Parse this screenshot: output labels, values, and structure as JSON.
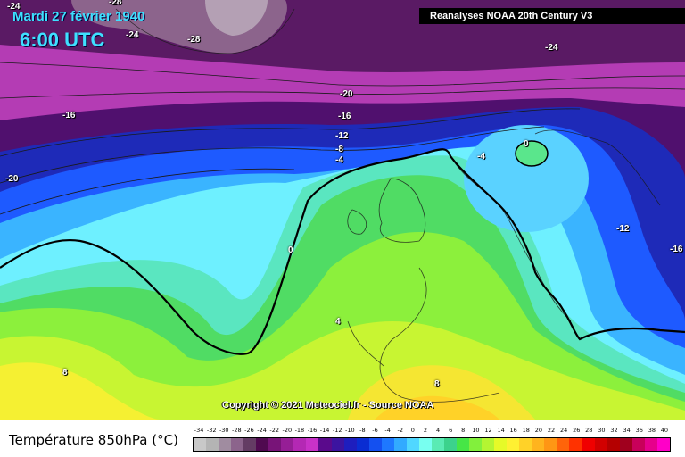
{
  "header": {
    "date": "Mardi 27 février 1940",
    "time": "6:00 UTC",
    "source": "Reanalyses NOAA 20th Century V3",
    "copyright": "Copyright © 2021 Meteociel.fr - Source NOAA"
  },
  "map": {
    "contour_labels": [
      "-24",
      "-28",
      "-24",
      "-28",
      "-24",
      "-20",
      "-16",
      "-16",
      "-12",
      "-8",
      "-4",
      "-20",
      "-4",
      "0",
      "0",
      "-12",
      "-16",
      "4",
      "8",
      "8"
    ],
    "zero_isotherm_color": "#000000"
  },
  "legend": {
    "title": "Température 850hPa (°C)",
    "ticks": [
      "-34",
      "-32",
      "-30",
      "-28",
      "-26",
      "-24",
      "-22",
      "-20",
      "-18",
      "-16",
      "-14",
      "-12",
      "-10",
      "-8",
      "-6",
      "-4",
      "-2",
      "0",
      "2",
      "4",
      "6",
      "8",
      "10",
      "12",
      "14",
      "16",
      "18",
      "20",
      "22",
      "24",
      "26",
      "28",
      "30",
      "32",
      "34",
      "36",
      "38",
      "40"
    ],
    "colors": [
      "#c8c8c8",
      "#b4b4b4",
      "#a08ca0",
      "#8c648c",
      "#643c64",
      "#500a50",
      "#781478",
      "#961e96",
      "#b428b4",
      "#c832c8",
      "#5a0a8c",
      "#3c14a0",
      "#1e1ebe",
      "#0a2dd2",
      "#1450f0",
      "#1e78ff",
      "#32aaff",
      "#50d7ff",
      "#78fff0",
      "#5aebb4",
      "#3cd28c",
      "#46e646",
      "#82f03c",
      "#b4f532",
      "#e6fa28",
      "#fff032",
      "#ffd228",
      "#ffb41e",
      "#ff9614",
      "#ff640a",
      "#ff3200",
      "#f00000",
      "#d20000",
      "#b40000",
      "#a0001e",
      "#c8005a",
      "#e6008c",
      "#ff00c8"
    ]
  }
}
